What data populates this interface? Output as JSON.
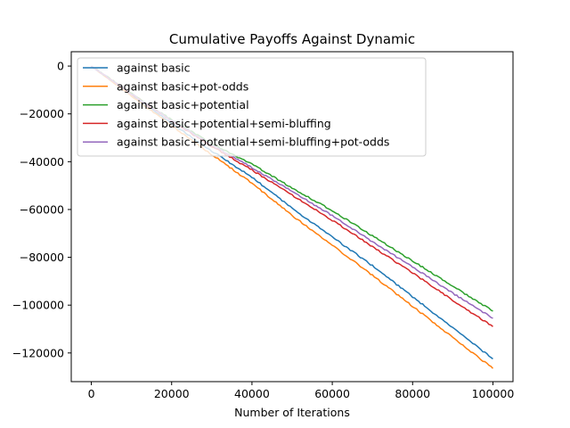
{
  "chart_data": {
    "type": "line",
    "title": "Cumulative Payoffs Against Dynamic",
    "xlabel": "Number of Iterations",
    "ylabel": "",
    "xlim": [
      -5000,
      105000
    ],
    "ylim": [
      -132000,
      6000
    ],
    "xticks": [
      0,
      20000,
      40000,
      60000,
      80000,
      100000
    ],
    "yticks": [
      0,
      -20000,
      -40000,
      -60000,
      -80000,
      -100000,
      -120000
    ],
    "xtick_labels": [
      "0",
      "20000",
      "40000",
      "60000",
      "80000",
      "100000"
    ],
    "ytick_labels": [
      "0",
      "−20000",
      "−40000",
      "−60000",
      "−80000",
      "−100000",
      "−120000"
    ],
    "grid": false,
    "legend_position": "upper-left",
    "series": [
      {
        "name": "against basic",
        "color": "#1f77b4",
        "x": [
          0,
          10000,
          20000,
          30000,
          40000,
          50000,
          60000,
          70000,
          80000,
          90000,
          100000
        ],
        "y": [
          0,
          -12000,
          -24000,
          -35500,
          -46500,
          -59500,
          -71500,
          -83500,
          -96500,
          -109500,
          -122500
        ]
      },
      {
        "name": "against basic+pot-odds",
        "color": "#ff7f0e",
        "x": [
          0,
          10000,
          20000,
          30000,
          40000,
          50000,
          60000,
          70000,
          80000,
          90000,
          100000
        ],
        "y": [
          0,
          -12500,
          -25000,
          -37000,
          -49000,
          -62500,
          -75000,
          -87500,
          -100500,
          -113500,
          -126500
        ]
      },
      {
        "name": "against basic+potential",
        "color": "#2ca02c",
        "x": [
          0,
          10000,
          20000,
          30000,
          40000,
          50000,
          60000,
          70000,
          80000,
          90000,
          100000
        ],
        "y": [
          0,
          -11500,
          -22500,
          -32500,
          -41000,
          -51000,
          -60500,
          -71000,
          -81500,
          -92000,
          -102500
        ]
      },
      {
        "name": "against basic+potential+semi-bluffing",
        "color": "#d62728",
        "x": [
          0,
          10000,
          20000,
          30000,
          40000,
          50000,
          60000,
          70000,
          80000,
          90000,
          100000
        ],
        "y": [
          0,
          -11800,
          -23000,
          -33500,
          -43500,
          -54000,
          -64500,
          -75500,
          -86500,
          -98000,
          -109000
        ]
      },
      {
        "name": "against basic+potential+semi-bluffing+pot-odds",
        "color": "#9467bd",
        "x": [
          0,
          10000,
          20000,
          30000,
          40000,
          50000,
          60000,
          70000,
          80000,
          90000,
          100000
        ],
        "y": [
          0,
          -11700,
          -22800,
          -33000,
          -42500,
          -52500,
          -62500,
          -73500,
          -84000,
          -95000,
          -105500
        ]
      }
    ]
  }
}
